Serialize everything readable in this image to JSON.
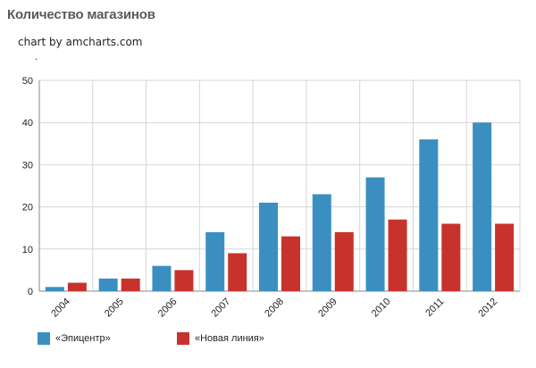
{
  "page": {
    "title": "Количество магазинов",
    "credit": "chart by amcharts.com",
    "dot": "."
  },
  "colors": {
    "series1": "#3b8fc0",
    "series2": "#c8322d",
    "grid": "#d6d6d6",
    "axis": "#888888",
    "text": "#222222"
  },
  "chart_data": {
    "type": "bar",
    "title": "Количество магазинов",
    "xlabel": "",
    "ylabel": "",
    "ylim": [
      0,
      50
    ],
    "yticks": [
      0,
      10,
      20,
      30,
      40,
      50
    ],
    "categories": [
      "2004",
      "2005",
      "2006",
      "2007",
      "2008",
      "2009",
      "2010",
      "2011",
      "2012"
    ],
    "series": [
      {
        "name": "«Эпицентр»",
        "values": [
          1,
          3,
          6,
          14,
          21,
          23,
          27,
          36,
          40
        ]
      },
      {
        "name": "«Новая линия»",
        "values": [
          2,
          3,
          5,
          9,
          13,
          14,
          17,
          16,
          16
        ]
      }
    ],
    "grid": true,
    "legend": "bottom-left"
  }
}
